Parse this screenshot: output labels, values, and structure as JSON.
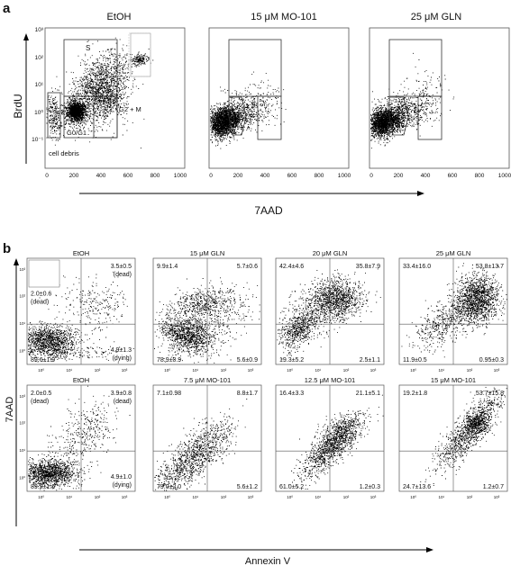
{
  "panel_a": {
    "label": "a",
    "y_axis_label": "BrdU",
    "x_axis_label": "7AAD",
    "y_ticks": [
      "10⁻¹",
      "10⁰",
      "10¹",
      "10²",
      "10³"
    ],
    "x_ticks": [
      "0",
      "200",
      "400",
      "600",
      "800",
      "1000"
    ],
    "plots": [
      {
        "title": "EtOH",
        "gate_labels": {
          "s": "S",
          "g2m": "G2 + M",
          "g0g1": "G0/G1",
          "debris": "cell debris"
        }
      },
      {
        "title": "15 μM MO-101"
      },
      {
        "title": "25 μM GLN"
      }
    ]
  },
  "panel_b": {
    "label": "b",
    "y_axis_label": "7AAD",
    "x_axis_label": "Annexin V",
    "x_ticks": [
      "10⁰",
      "10¹",
      "10²",
      "10³"
    ],
    "y_ticks": [
      "10⁰",
      "10¹",
      "10²",
      "10³"
    ],
    "plots": [
      {
        "title": "EtOH",
        "ul": "2.0±0.6",
        "ul_note": "(dead)",
        "ur": "3.5±0.5",
        "ur_note": "(dead)",
        "ll": "89.6±1.9",
        "lr": "4.9±1.3",
        "lr_note": "(dying)"
      },
      {
        "title": "15 μM GLN",
        "ul": "9.9±1.4",
        "ur": "5.7±0.6",
        "ll": "78.9±0.9",
        "lr": "5.6±0.9"
      },
      {
        "title": "20 μM GLN",
        "ul": "42.4±4.6",
        "ur": "35.8±7.9",
        "ll": "19.3±5.2",
        "lr": "2.5±1.1"
      },
      {
        "title": "25 μM GLN",
        "ul": "33.4±16.0",
        "ur": "53.8±13.7",
        "ll": "11.9±0.5",
        "lr": "0.95±0.3"
      },
      {
        "title": "EtOH",
        "ul": "2.0±0.5",
        "ul_note": "(dead)",
        "ur": "3.9±0.8",
        "ur_note": "(dead)",
        "ll": "89.2±1.6",
        "lr": "4.9±1.0",
        "lr_note": "(dying)"
      },
      {
        "title": "7.5 μM MO-101",
        "ul": "7.1±0.98",
        "ur": "8.8±1.7",
        "ll": "79.0±2.0",
        "lr": "5.6±1.2"
      },
      {
        "title": "12.5 μM MO-101",
        "ul": "16.4±3.3",
        "ur": "21.1±5.1",
        "ll": "61.0±5.2",
        "lr": "1.2±0.3"
      },
      {
        "title": "15 μM MO-101",
        "ul": "19.2±1.8",
        "ur": "53.7±15.8",
        "ll": "24.7±13.6",
        "lr": "1.2±0.7"
      }
    ]
  }
}
